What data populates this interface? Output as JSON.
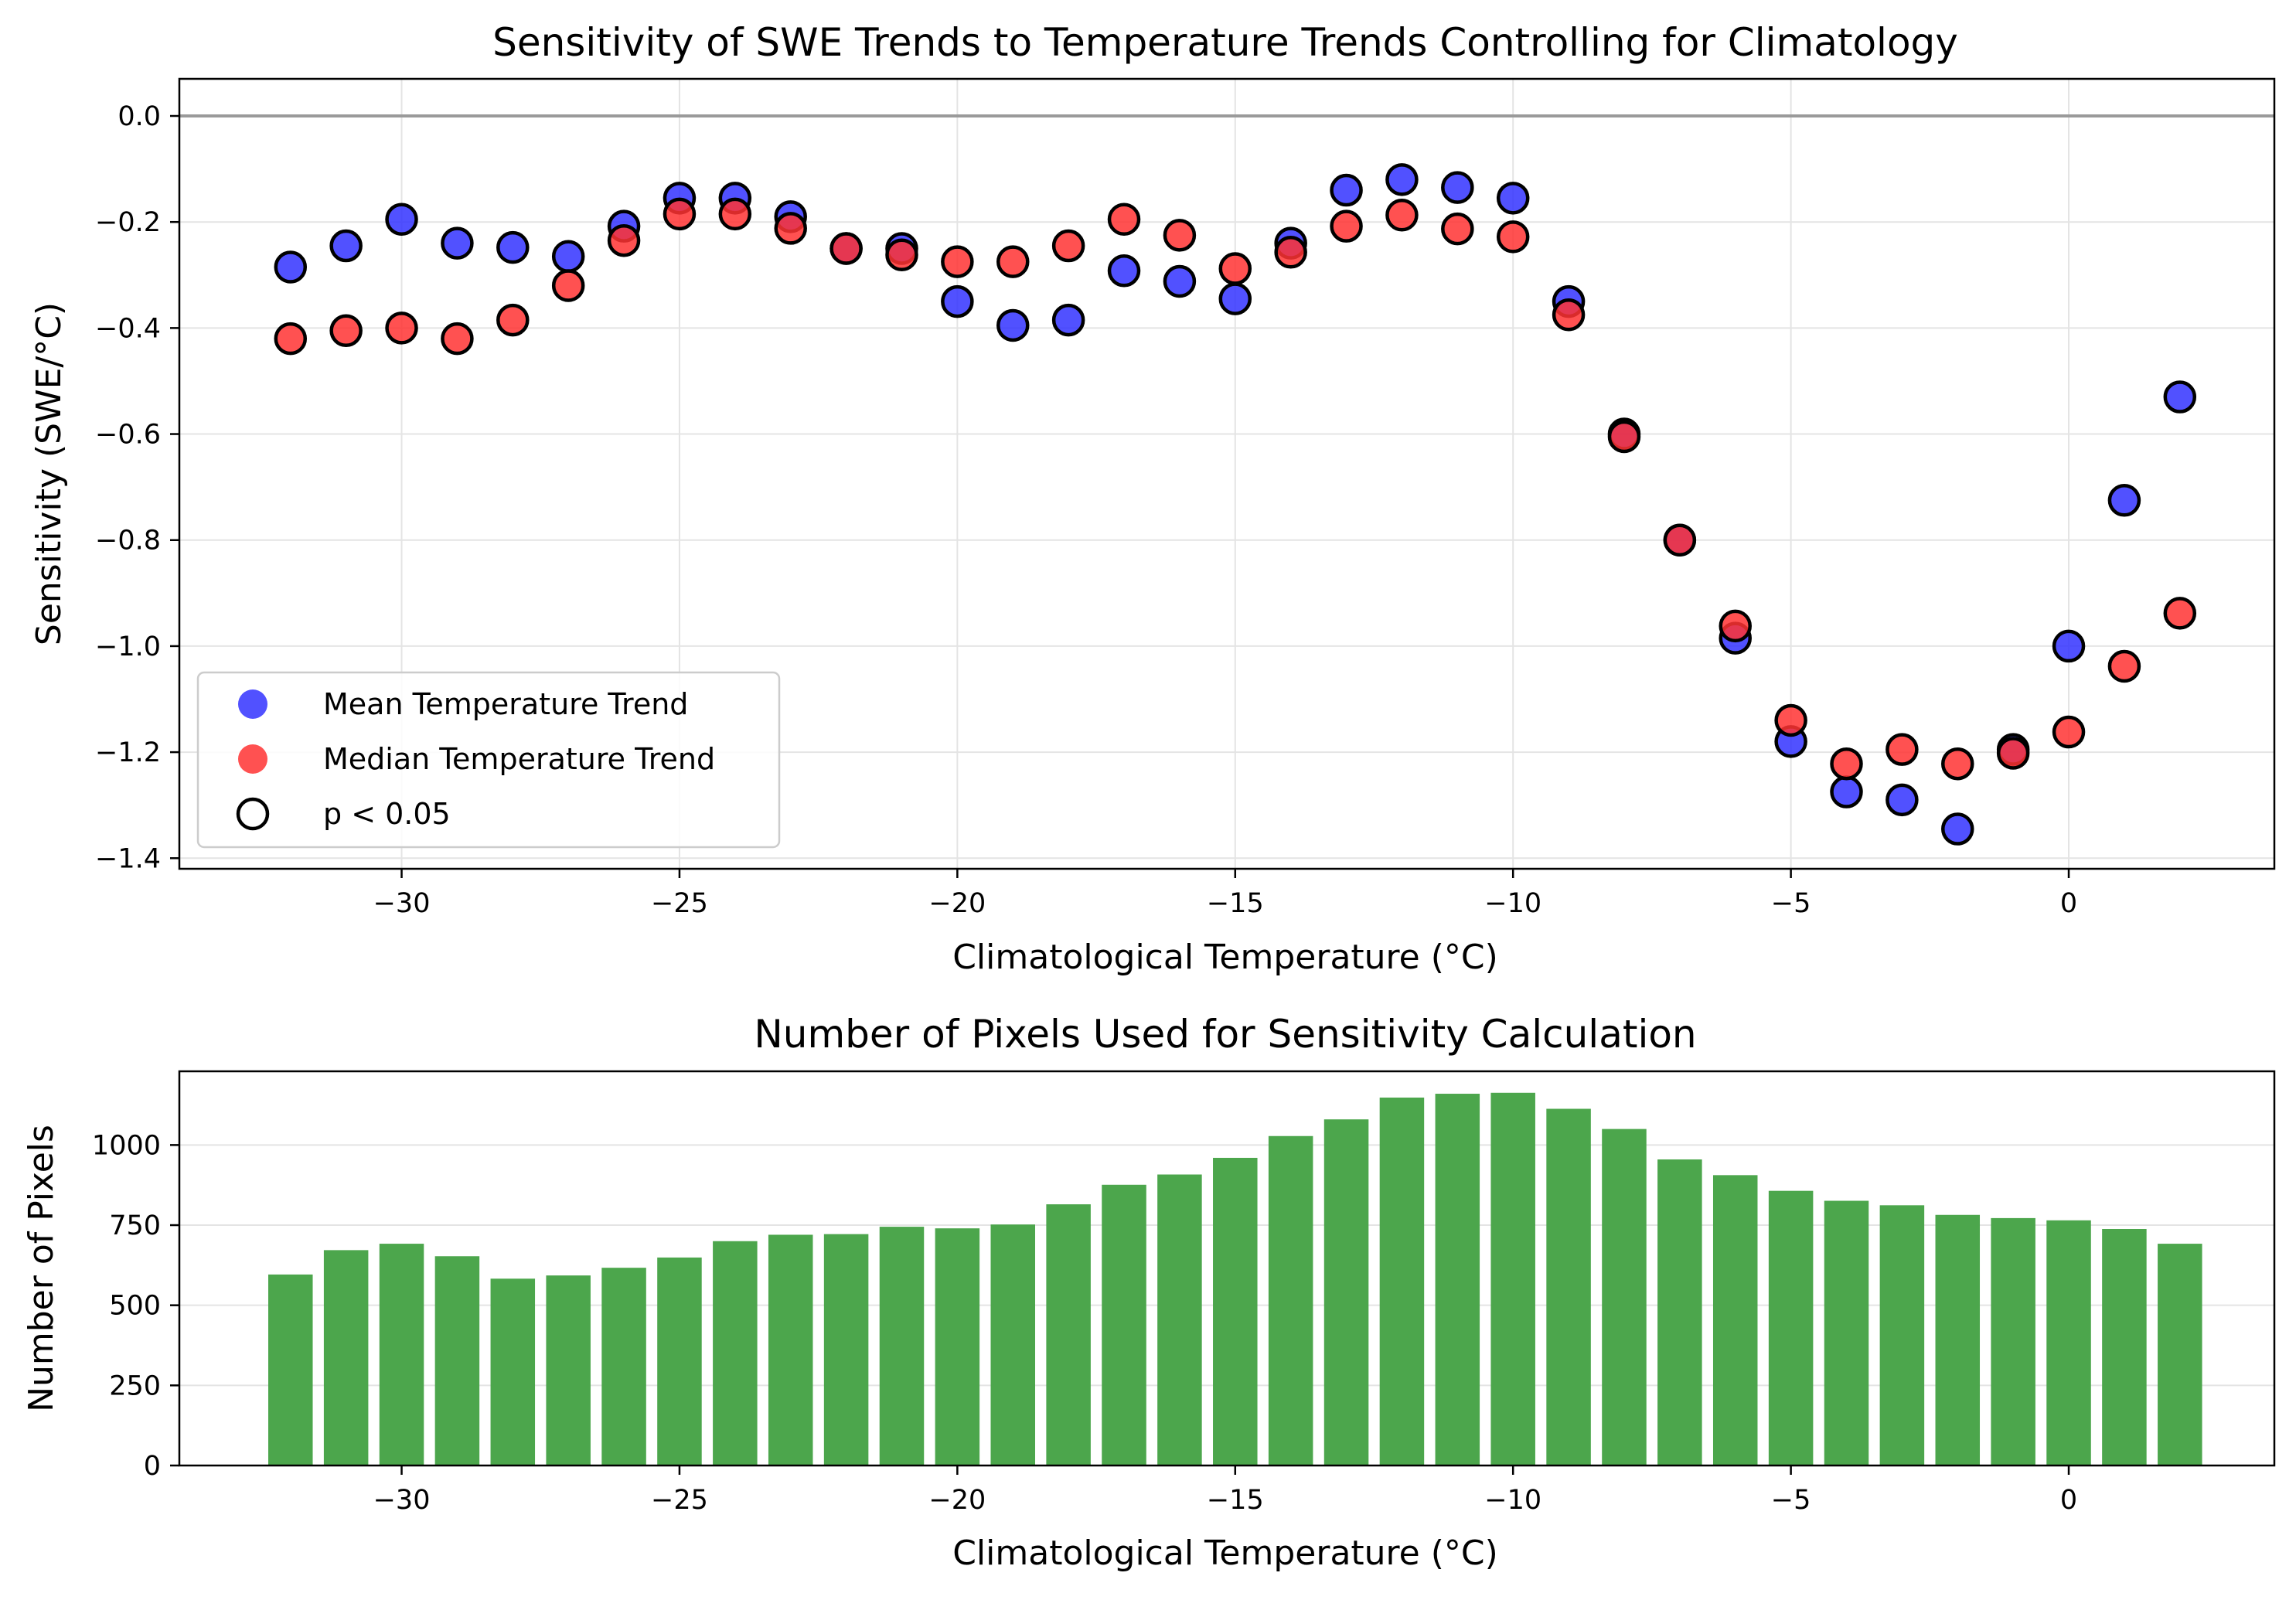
{
  "chart_data": [
    {
      "type": "scatter",
      "title": "Sensitivity of SWE Trends to Temperature Trends Controlling for Climatology",
      "xlabel": "Climatological Temperature (°C)",
      "ylabel": "Sensitivity (SWE/°C)",
      "xlim": [
        -34,
        3.7
      ],
      "ylim": [
        -1.42,
        0.07
      ],
      "xticks": [
        -30,
        -25,
        -20,
        -15,
        -10,
        -5,
        0
      ],
      "xtick_labels": [
        "−30",
        "−25",
        "−20",
        "−15",
        "−10",
        "−5",
        "0"
      ],
      "yticks": [
        0.0,
        -0.2,
        -0.4,
        -0.6,
        -0.8,
        -1.0,
        -1.2,
        -1.4
      ],
      "ytick_labels": [
        "0.0",
        "−0.2",
        "−0.4",
        "−0.6",
        "−0.8",
        "−1.0",
        "−1.2",
        "−1.4"
      ],
      "grid": true,
      "reference_line_y": 0,
      "legend": {
        "placement": "lower-left",
        "entries": [
          "Mean Temperature Trend",
          "Median Temperature Trend",
          "p < 0.05"
        ]
      },
      "x": [
        -32,
        -31,
        -30,
        -29,
        -28,
        -27,
        -26,
        -25,
        -24,
        -23,
        -22,
        -21,
        -20,
        -19,
        -18,
        -17,
        -16,
        -15,
        -14,
        -13,
        -12,
        -11,
        -10,
        -9,
        -8,
        -7,
        -6,
        -5,
        -4,
        -3,
        -2,
        -1,
        0,
        1,
        2
      ],
      "series": [
        {
          "name": "Mean Temperature Trend",
          "color": "#3333ff",
          "values": [
            -0.285,
            -0.245,
            -0.195,
            -0.24,
            -0.248,
            -0.265,
            -0.208,
            -0.155,
            -0.155,
            -0.19,
            -0.25,
            -0.25,
            -0.35,
            -0.395,
            -0.385,
            -0.292,
            -0.312,
            -0.345,
            -0.24,
            -0.14,
            -0.12,
            -0.135,
            -0.155,
            -0.35,
            -0.6,
            -0.8,
            -0.985,
            -1.18,
            -1.275,
            -1.29,
            -1.345,
            -1.195,
            -1.0,
            -0.725,
            -0.53
          ],
          "significant": [
            true,
            true,
            true,
            true,
            true,
            true,
            true,
            true,
            true,
            true,
            true,
            true,
            true,
            true,
            true,
            true,
            true,
            true,
            true,
            true,
            true,
            true,
            true,
            true,
            true,
            true,
            true,
            true,
            true,
            true,
            true,
            true,
            true,
            true,
            true
          ]
        },
        {
          "name": "Median Temperature Trend",
          "color": "#ff3333",
          "values": [
            -0.42,
            -0.405,
            -0.4,
            -0.42,
            -0.385,
            -0.32,
            -0.235,
            -0.185,
            -0.185,
            -0.212,
            -0.25,
            -0.262,
            -0.275,
            -0.275,
            -0.245,
            -0.195,
            -0.225,
            -0.288,
            -0.257,
            -0.208,
            -0.187,
            -0.213,
            -0.228,
            -0.375,
            -0.605,
            -0.8,
            -0.962,
            -1.14,
            -1.222,
            -1.195,
            -1.222,
            -1.202,
            -1.162,
            -1.038,
            -0.938
          ],
          "significant": [
            true,
            true,
            true,
            true,
            true,
            true,
            true,
            true,
            true,
            true,
            true,
            true,
            true,
            true,
            true,
            true,
            true,
            true,
            true,
            true,
            true,
            true,
            true,
            true,
            true,
            true,
            true,
            true,
            true,
            true,
            true,
            true,
            true,
            true,
            true
          ]
        }
      ]
    },
    {
      "type": "bar",
      "title": "Number of Pixels Used for Sensitivity Calculation",
      "xlabel": "Climatological Temperature (°C)",
      "ylabel": "Number of Pixels",
      "xlim": [
        -34,
        3.7
      ],
      "ylim": [
        0,
        1230
      ],
      "xticks": [
        -30,
        -25,
        -20,
        -15,
        -10,
        -5,
        0
      ],
      "xtick_labels": [
        "−30",
        "−25",
        "−20",
        "−15",
        "−10",
        "−5",
        "0"
      ],
      "yticks": [
        0,
        250,
        500,
        750,
        1000
      ],
      "ytick_labels": [
        "0",
        "250",
        "500",
        "750",
        "1000"
      ],
      "grid": true,
      "bar_color": "#4ca64c",
      "x": [
        -32,
        -31,
        -30,
        -29,
        -28,
        -27,
        -26,
        -25,
        -24,
        -23,
        -22,
        -21,
        -20,
        -19,
        -18,
        -17,
        -16,
        -15,
        -14,
        -13,
        -12,
        -11,
        -10,
        -9,
        -8,
        -7,
        -6,
        -5,
        -4,
        -3,
        -2,
        -1,
        0,
        1,
        2
      ],
      "values": [
        596,
        672,
        692,
        653,
        583,
        593,
        617,
        649,
        700,
        720,
        722,
        745,
        740,
        752,
        815,
        876,
        908,
        960,
        1028,
        1080,
        1148,
        1160,
        1163,
        1113,
        1050,
        955,
        906,
        857,
        826,
        812,
        782,
        772,
        765,
        738,
        692
      ]
    }
  ]
}
